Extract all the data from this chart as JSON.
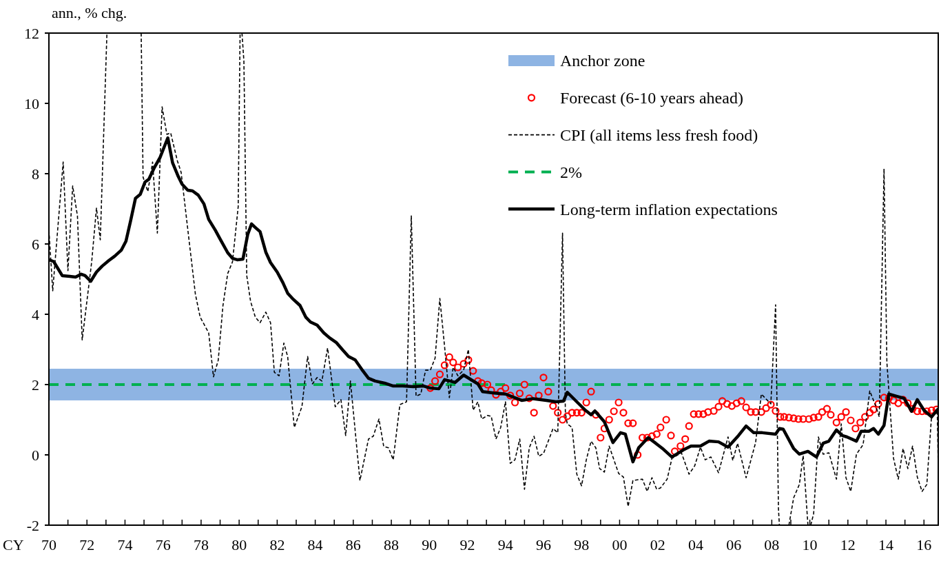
{
  "chart_data": {
    "type": "line",
    "xlabel": "CY",
    "ylabel": "ann., % chg.",
    "xlim": [
      1970,
      2016.75
    ],
    "ylim": [
      -2,
      12
    ],
    "xticks": [
      {
        "value": 1970,
        "label": "70"
      },
      {
        "value": 1971,
        "label": null
      },
      {
        "value": 1972,
        "label": "72"
      },
      {
        "value": 1973,
        "label": null
      },
      {
        "value": 1974,
        "label": "74"
      },
      {
        "value": 1975,
        "label": null
      },
      {
        "value": 1976,
        "label": "76"
      },
      {
        "value": 1977,
        "label": null
      },
      {
        "value": 1978,
        "label": "78"
      },
      {
        "value": 1979,
        "label": null
      },
      {
        "value": 1980,
        "label": "80"
      },
      {
        "value": 1981,
        "label": null
      },
      {
        "value": 1982,
        "label": "82"
      },
      {
        "value": 1983,
        "label": null
      },
      {
        "value": 1984,
        "label": "84"
      },
      {
        "value": 1985,
        "label": null
      },
      {
        "value": 1986,
        "label": "86"
      },
      {
        "value": 1987,
        "label": null
      },
      {
        "value": 1988,
        "label": "88"
      },
      {
        "value": 1989,
        "label": null
      },
      {
        "value": 1990,
        "label": "90"
      },
      {
        "value": 1991,
        "label": null
      },
      {
        "value": 1992,
        "label": "92"
      },
      {
        "value": 1993,
        "label": null
      },
      {
        "value": 1994,
        "label": "94"
      },
      {
        "value": 1995,
        "label": null
      },
      {
        "value": 1996,
        "label": "96"
      },
      {
        "value": 1997,
        "label": null
      },
      {
        "value": 1998,
        "label": "98"
      },
      {
        "value": 1999,
        "label": null
      },
      {
        "value": 2000,
        "label": "00"
      },
      {
        "value": 2001,
        "label": null
      },
      {
        "value": 2002,
        "label": "02"
      },
      {
        "value": 2003,
        "label": null
      },
      {
        "value": 2004,
        "label": "04"
      },
      {
        "value": 2005,
        "label": null
      },
      {
        "value": 2006,
        "label": "06"
      },
      {
        "value": 2007,
        "label": null
      },
      {
        "value": 2008,
        "label": "08"
      },
      {
        "value": 2009,
        "label": null
      },
      {
        "value": 2010,
        "label": "10"
      },
      {
        "value": 2011,
        "label": null
      },
      {
        "value": 2012,
        "label": "12"
      },
      {
        "value": 2013,
        "label": null
      },
      {
        "value": 2014,
        "label": "14"
      },
      {
        "value": 2015,
        "label": null
      },
      {
        "value": 2016,
        "label": "16"
      }
    ],
    "yticks": [
      -2,
      0,
      2,
      4,
      6,
      8,
      10,
      12
    ],
    "legend": "top right",
    "bands": [
      {
        "axis": "y",
        "from": 1.55,
        "to": 2.45,
        "label": "Anchor zone",
        "color": "#8eb4e3"
      }
    ],
    "ref_lines": [
      {
        "axis": "y",
        "value": 2,
        "label": "2%",
        "color": "#00b050",
        "line_style": "dashed"
      }
    ],
    "series": [
      {
        "name": "Forecast (6-10 years ahead)",
        "type": "scatter",
        "marker": "circle",
        "color": "#ff0000",
        "x": [
          1990.05,
          1990.3,
          1990.55,
          1990.8,
          1991.05,
          1991.25,
          1991.5,
          1991.8,
          1992.05,
          1992.3,
          1992.55,
          1992.75,
          1993.05,
          1993.25,
          1993.5,
          1993.75,
          1994.0,
          1994.25,
          1994.5,
          1994.75,
          1995.0,
          1995.25,
          1995.5,
          1995.75,
          1996.0,
          1996.25,
          1996.5,
          1996.75,
          1997.0,
          1997.25,
          1997.5,
          1997.75,
          1998.0,
          1998.25,
          1998.5,
          1998.75,
          1999.0,
          1999.2,
          1999.45,
          1999.7,
          1999.95,
          2000.2,
          2000.45,
          2000.7,
          2000.95,
          2001.2,
          2001.45,
          2001.7,
          2001.95,
          2002.15,
          2002.45,
          2002.7,
          2002.9,
          2003.2,
          2003.45,
          2003.65,
          2003.9,
          2004.15,
          2004.4,
          2004.65,
          2004.95,
          2005.2,
          2005.4,
          2005.65,
          2005.9,
          2006.15,
          2006.4,
          2006.65,
          2006.9,
          2007.15,
          2007.45,
          2007.7,
          2007.95,
          2008.2,
          2008.45,
          2008.65,
          2008.9,
          2009.15,
          2009.4,
          2009.65,
          2009.95,
          2010.2,
          2010.45,
          2010.65,
          2010.9,
          2011.1,
          2011.4,
          2011.65,
          2011.9,
          2012.15,
          2012.4,
          2012.65,
          2012.9,
          2013.15,
          2013.35,
          2013.6,
          2013.9,
          2014.15,
          2014.4,
          2014.65,
          2014.9,
          2015.15,
          2015.4,
          2015.65,
          2015.9,
          2016.15,
          2016.4,
          2016.65
        ],
        "values": [
          1.9,
          2.1,
          2.29,
          2.55,
          2.78,
          2.63,
          2.49,
          2.59,
          2.7,
          2.39,
          2.1,
          2.04,
          2.0,
          1.84,
          1.71,
          1.8,
          1.9,
          1.69,
          1.49,
          1.75,
          2.0,
          1.61,
          1.2,
          1.69,
          2.2,
          1.8,
          1.39,
          1.2,
          1.0,
          1.1,
          1.2,
          1.2,
          1.2,
          1.49,
          1.8,
          1.14,
          0.49,
          0.75,
          1.0,
          1.24,
          1.49,
          1.2,
          0.9,
          0.9,
          0.0,
          0.49,
          0.49,
          0.53,
          0.59,
          0.78,
          1.0,
          0.55,
          0.1,
          0.25,
          0.45,
          0.82,
          1.16,
          1.16,
          1.16,
          1.22,
          1.25,
          1.37,
          1.53,
          1.45,
          1.39,
          1.47,
          1.53,
          1.35,
          1.22,
          1.22,
          1.22,
          1.33,
          1.43,
          1.25,
          1.08,
          1.08,
          1.06,
          1.04,
          1.02,
          1.02,
          1.02,
          1.06,
          1.08,
          1.22,
          1.31,
          1.14,
          0.92,
          1.08,
          1.22,
          0.98,
          0.75,
          0.92,
          1.08,
          1.2,
          1.29,
          1.45,
          1.63,
          1.61,
          1.55,
          1.47,
          1.57,
          1.47,
          1.31,
          1.24,
          1.24,
          1.24,
          1.27,
          1.29
        ]
      },
      {
        "name": "CPI (all items less fresh food)",
        "line_style": "dashed",
        "color": "#000000",
        "x": [
          1970.0,
          1970.2,
          1970.75,
          1971.0,
          1971.25,
          1971.5,
          1971.75,
          1972.25,
          1972.5,
          1972.7,
          1973.05,
          1974.0,
          1974.85,
          1974.95,
          1975.2,
          1975.45,
          1975.7,
          1975.95,
          1976.2,
          1976.4,
          1976.75,
          1976.95,
          1977.5,
          1977.7,
          1977.95,
          1978.4,
          1978.65,
          1978.9,
          1979.15,
          1979.4,
          1979.65,
          1979.95,
          1980.05,
          1980.1,
          1980.15,
          1980.25,
          1980.4,
          1980.6,
          1980.85,
          1981.1,
          1981.4,
          1981.65,
          1981.85,
          1982.1,
          1982.35,
          1982.55,
          1982.9,
          1983.3,
          1983.6,
          1983.85,
          1984.1,
          1984.35,
          1984.65,
          1985.05,
          1985.35,
          1985.6,
          1985.85,
          1986.35,
          1986.8,
          1987.05,
          1987.35,
          1987.6,
          1987.85,
          1988.1,
          1988.45,
          1988.8,
          1989.05,
          1989.3,
          1989.55,
          1989.8,
          1990.05,
          1990.3,
          1990.55,
          1990.8,
          1991.05,
          1991.25,
          1991.5,
          1991.8,
          1992.05,
          1992.3,
          1992.55,
          1992.75,
          1993.05,
          1993.25,
          1993.5,
          1993.75,
          1994.0,
          1994.25,
          1994.5,
          1994.75,
          1995.0,
          1995.25,
          1995.5,
          1995.75,
          1996.0,
          1996.25,
          1996.5,
          1996.75,
          1997.0,
          1997.15,
          1997.25,
          1997.5,
          1997.75,
          1998.0,
          1998.25,
          1998.5,
          1998.75,
          1998.95,
          1999.2,
          1999.45,
          1999.7,
          1999.95,
          2000.2,
          2000.45,
          2000.7,
          2001.2,
          2001.45,
          2001.7,
          2001.95,
          2002.15,
          2002.5,
          2002.75,
          2003.25,
          2003.65,
          2003.95,
          2004.25,
          2004.5,
          2004.8,
          2005.2,
          2005.7,
          2005.95,
          2006.2,
          2006.65,
          2007.15,
          2007.45,
          2007.95,
          2008.2,
          2008.35,
          2008.4,
          2008.65,
          2008.9,
          2009.15,
          2009.45,
          2009.65,
          2009.9,
          2010.0,
          2010.05,
          2010.2,
          2010.45,
          2010.7,
          2011.0,
          2011.4,
          2011.65,
          2011.9,
          2012.15,
          2012.45,
          2012.8,
          2013.15,
          2013.45,
          2013.65,
          2013.9,
          2014.05,
          2014.4,
          2014.65,
          2014.9,
          2015.15,
          2015.4,
          2015.65,
          2015.9,
          2016.15,
          2016.4,
          2016.7,
          2016.75
        ],
        "values": [
          6.4,
          4.67,
          8.33,
          5.24,
          7.65,
          6.8,
          3.27,
          5.5,
          7.02,
          6.12,
          12,
          null,
          12,
          7.9,
          7.49,
          8.33,
          6.31,
          9.9,
          9.12,
          9.16,
          8.37,
          8.04,
          5.49,
          4.57,
          3.92,
          3.47,
          2.22,
          2.69,
          4.25,
          5.16,
          5.49,
          7.06,
          12,
          null,
          12,
          11.2,
          5.1,
          4.37,
          3.92,
          3.76,
          4.06,
          3.76,
          2.35,
          2.25,
          3.18,
          2.8,
          0.78,
          1.37,
          2.8,
          2.02,
          2.2,
          2.1,
          3.04,
          1.37,
          1.57,
          0.55,
          2.1,
          -0.73,
          0.45,
          0.53,
          1.02,
          0.24,
          0.2,
          -0.14,
          1.43,
          1.51,
          6.8,
          1.67,
          1.73,
          2.41,
          2.41,
          2.75,
          4.45,
          3.08,
          1.63,
          2.49,
          2.25,
          2.41,
          3.0,
          1.27,
          1.51,
          1.02,
          1.12,
          1.1,
          0.45,
          0.78,
          1.51,
          -0.24,
          -0.14,
          0.45,
          -0.98,
          0.2,
          0.53,
          -0.04,
          0.04,
          0.39,
          0.75,
          0.63,
          6.31,
          1.18,
          0.88,
          0.78,
          -0.55,
          -0.88,
          -0.14,
          0.39,
          0.2,
          -0.39,
          -0.49,
          0.25,
          -0.14,
          -0.53,
          -0.63,
          -1.47,
          -0.73,
          -0.69,
          -1.04,
          -0.65,
          -0.98,
          -0.94,
          -0.69,
          -0.1,
          0.06,
          -0.55,
          -0.31,
          0.22,
          -0.14,
          -0.06,
          -0.51,
          0.51,
          -0.16,
          0.33,
          -0.65,
          0.35,
          1.73,
          1.45,
          4.27,
          -1.53,
          -2,
          null,
          -2,
          -1.22,
          -0.84,
          -0.02,
          -2,
          null,
          -2,
          -1.67,
          0.51,
          0.02,
          0.06,
          -0.69,
          0.88,
          -0.65,
          -1.04,
          0.02,
          0.29,
          1.82,
          1.41,
          1.08,
          8.14,
          2.63,
          -0.1,
          -0.69,
          0.18,
          -0.39,
          0.25,
          -0.63,
          -1.04,
          -0.84,
          1.12,
          1.2,
          -0.35
        ]
      },
      {
        "name": "Long-term inflation expectations",
        "line_style": "solid",
        "color": "#000000",
        "x": [
          1970.0,
          1970.25,
          1970.7,
          1971.1,
          1971.4,
          1971.7,
          1971.9,
          1972.2,
          1972.5,
          1972.8,
          1973.15,
          1973.45,
          1973.8,
          1974.05,
          1974.3,
          1974.55,
          1974.8,
          1975.05,
          1975.25,
          1975.55,
          1975.85,
          1976.25,
          1976.5,
          1976.8,
          1977.0,
          1977.3,
          1977.55,
          1977.85,
          1978.15,
          1978.4,
          1978.75,
          1979.0,
          1979.4,
          1979.65,
          1979.9,
          1980.2,
          1980.45,
          1980.65,
          1980.85,
          1981.1,
          1981.4,
          1981.65,
          1982.0,
          1982.3,
          1982.55,
          1982.8,
          1983.2,
          1983.5,
          1983.75,
          1984.1,
          1984.45,
          1984.75,
          1985.1,
          1985.45,
          1985.75,
          1986.1,
          1986.45,
          1986.8,
          1987.15,
          1987.65,
          1988.1,
          1988.6,
          1989.15,
          1989.7,
          1990.05,
          1990.5,
          1990.8,
          1991.35,
          1991.8,
          1992.55,
          1992.8,
          1993.4,
          1994.0,
          1994.85,
          1995.45,
          1996.15,
          1996.65,
          1997.05,
          1997.25,
          1997.75,
          1998.2,
          1998.5,
          1998.7,
          1999.2,
          1999.65,
          2000.05,
          2000.3,
          2000.7,
          2001.0,
          2001.5,
          2001.9,
          2002.3,
          2002.75,
          2003.35,
          2003.75,
          2004.25,
          2004.7,
          2005.2,
          2005.7,
          2006.25,
          2006.65,
          2007.05,
          2007.5,
          2008.2,
          2008.4,
          2008.6,
          2009.15,
          2009.45,
          2009.9,
          2010.35,
          2010.7,
          2011.0,
          2011.4,
          2011.7,
          2011.95,
          2012.45,
          2012.7,
          2013.1,
          2013.35,
          2013.6,
          2013.9,
          2014.15,
          2014.55,
          2014.95,
          2015.35,
          2015.65,
          2016.0,
          2016.4,
          2016.75
        ],
        "values": [
          5.55,
          5.5,
          5.1,
          5.08,
          5.06,
          5.14,
          5.1,
          4.94,
          5.2,
          5.37,
          5.53,
          5.65,
          5.82,
          6.08,
          6.67,
          7.3,
          7.41,
          7.76,
          7.84,
          8.18,
          8.47,
          9.02,
          8.31,
          7.92,
          7.7,
          7.53,
          7.51,
          7.39,
          7.14,
          6.7,
          6.39,
          6.14,
          5.75,
          5.59,
          5.55,
          5.57,
          6.27,
          6.57,
          6.47,
          6.35,
          5.77,
          5.47,
          5.2,
          4.9,
          4.6,
          4.45,
          4.25,
          3.92,
          3.78,
          3.69,
          3.47,
          3.33,
          3.2,
          2.98,
          2.8,
          2.7,
          2.43,
          2.18,
          2.1,
          2.04,
          1.96,
          1.96,
          1.94,
          1.96,
          1.9,
          1.88,
          2.14,
          2.06,
          2.27,
          2.02,
          1.8,
          1.76,
          1.73,
          1.55,
          1.6,
          1.55,
          1.51,
          1.53,
          1.78,
          1.51,
          1.27,
          1.14,
          1.25,
          0.94,
          0.35,
          0.63,
          0.59,
          -0.2,
          0.2,
          0.49,
          0.33,
          0.16,
          -0.06,
          0.14,
          0.25,
          0.25,
          0.39,
          0.37,
          0.22,
          0.55,
          0.82,
          0.63,
          0.63,
          0.59,
          0.75,
          0.73,
          0.18,
          0.02,
          0.1,
          -0.06,
          0.33,
          0.39,
          0.71,
          0.55,
          0.51,
          0.39,
          0.67,
          0.67,
          0.75,
          0.59,
          0.84,
          1.73,
          1.67,
          1.61,
          1.24,
          1.57,
          1.27,
          1.08,
          1.31
        ]
      }
    ]
  }
}
